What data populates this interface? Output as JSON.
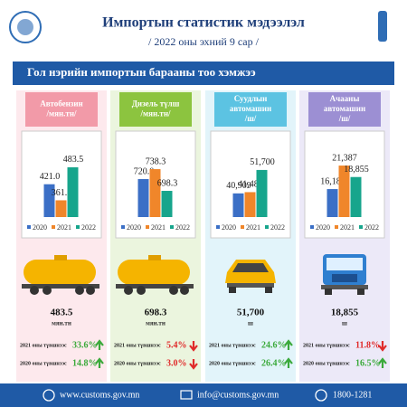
{
  "header": {
    "title": "Импортын статистик мэдээлэл",
    "subtitle": "/ 2022 оны эхний 9 сар /",
    "banner": "Гол нэрийн импортын барааны тоо хэмжээ"
  },
  "footer": {
    "website": "www.customs.gov.mn",
    "email": "info@customs.gov.mn",
    "phone": "1800-1281"
  },
  "chart_data": [
    {
      "type": "bar",
      "title": [
        "Автобензин",
        "/мян.тн/"
      ],
      "header_color": "#f29aa8",
      "panel_color": "#fde9ed",
      "ylim": [
        300,
        500
      ],
      "legend": "bottom",
      "series": [
        {
          "name": "2020",
          "color": "#3b6fc6",
          "values": [
            421.0
          ],
          "value_labels": [
            "421.0"
          ]
        },
        {
          "name": "2021",
          "color": "#f0862a",
          "values": [
            361.8
          ]
        },
        {
          "name": "2022",
          "color": "#17a58c",
          "values": [
            483.5
          ]
        }
      ],
      "icon": "tanker",
      "summary": "483.5",
      "unit": "мян.тн",
      "comparisons": [
        {
          "label": "2021 оны түвшнээс",
          "change": "33.6%",
          "direction": "up"
        },
        {
          "label": "2020 оны түвшнээс",
          "change": "14.8%",
          "direction": "up"
        }
      ]
    },
    {
      "type": "bar",
      "title": [
        "Дизель түлш",
        "/мян.тн/"
      ],
      "header_color": "#8cc43f",
      "panel_color": "#ebf5de",
      "ylim": [
        650,
        750
      ],
      "legend": "bottom",
      "series": [
        {
          "name": "2020",
          "color": "#3b6fc6",
          "values": [
            720.0
          ],
          "value_labels": [
            "720.0"
          ]
        },
        {
          "name": "2021",
          "color": "#f0862a",
          "values": [
            738.3
          ]
        },
        {
          "name": "2022",
          "color": "#17a58c",
          "values": [
            698.3
          ]
        }
      ],
      "icon": "tanker",
      "summary": "698.3",
      "unit": "мян.тн",
      "comparisons": [
        {
          "label": "2021 оны түвшнээс",
          "change": "5.4%",
          "direction": "down"
        },
        {
          "label": "2020 оны түвшнээс",
          "change": "3.0%",
          "direction": "down"
        }
      ]
    },
    {
      "type": "bar",
      "title": [
        "Суудлын",
        "автомашин",
        "/ш/"
      ],
      "header_color": "#5cc3e2",
      "panel_color": "#e2f4fa",
      "ylim": [
        30000,
        55000
      ],
      "legend": "bottom",
      "series": [
        {
          "name": "2020",
          "color": "#3b6fc6",
          "values": [
            40909
          ],
          "value_labels": [
            "40,909"
          ]
        },
        {
          "name": "2021",
          "color": "#f0862a",
          "values": [
            41481
          ],
          "value_labels": [
            "41,481"
          ]
        },
        {
          "name": "2022",
          "color": "#17a58c",
          "values": [
            51700
          ],
          "value_labels": [
            "51,700"
          ]
        }
      ],
      "icon": "car",
      "summary": "51,700",
      "unit": "ш",
      "comparisons": [
        {
          "label": "2021 оны түвшнээс",
          "change": "24.6%",
          "direction": "up"
        },
        {
          "label": "2020 оны түвшнээс",
          "change": "26.4%",
          "direction": "up"
        }
      ]
    },
    {
      "type": "bar",
      "title": [
        "Ачааны",
        "автомашин",
        "/ш/"
      ],
      "header_color": "#9c8fd3",
      "panel_color": "#ece9f8",
      "ylim": [
        10000,
        22000
      ],
      "legend": "bottom",
      "series": [
        {
          "name": "2020",
          "color": "#3b6fc6",
          "values": [
            16189
          ],
          "value_labels": [
            "16,189"
          ]
        },
        {
          "name": "2021",
          "color": "#f0862a",
          "values": [
            21387
          ],
          "value_labels": [
            "21,387"
          ]
        },
        {
          "name": "2022",
          "color": "#17a58c",
          "values": [
            18855
          ],
          "value_labels": [
            "18,855"
          ]
        }
      ],
      "icon": "truck",
      "summary": "18,855",
      "unit": "ш",
      "comparisons": [
        {
          "label": "2021 оны түвшнээс",
          "change": "11.8%",
          "direction": "down"
        },
        {
          "label": "2020 оны түвшнээс",
          "change": "16.5%",
          "direction": "up"
        }
      ]
    }
  ]
}
